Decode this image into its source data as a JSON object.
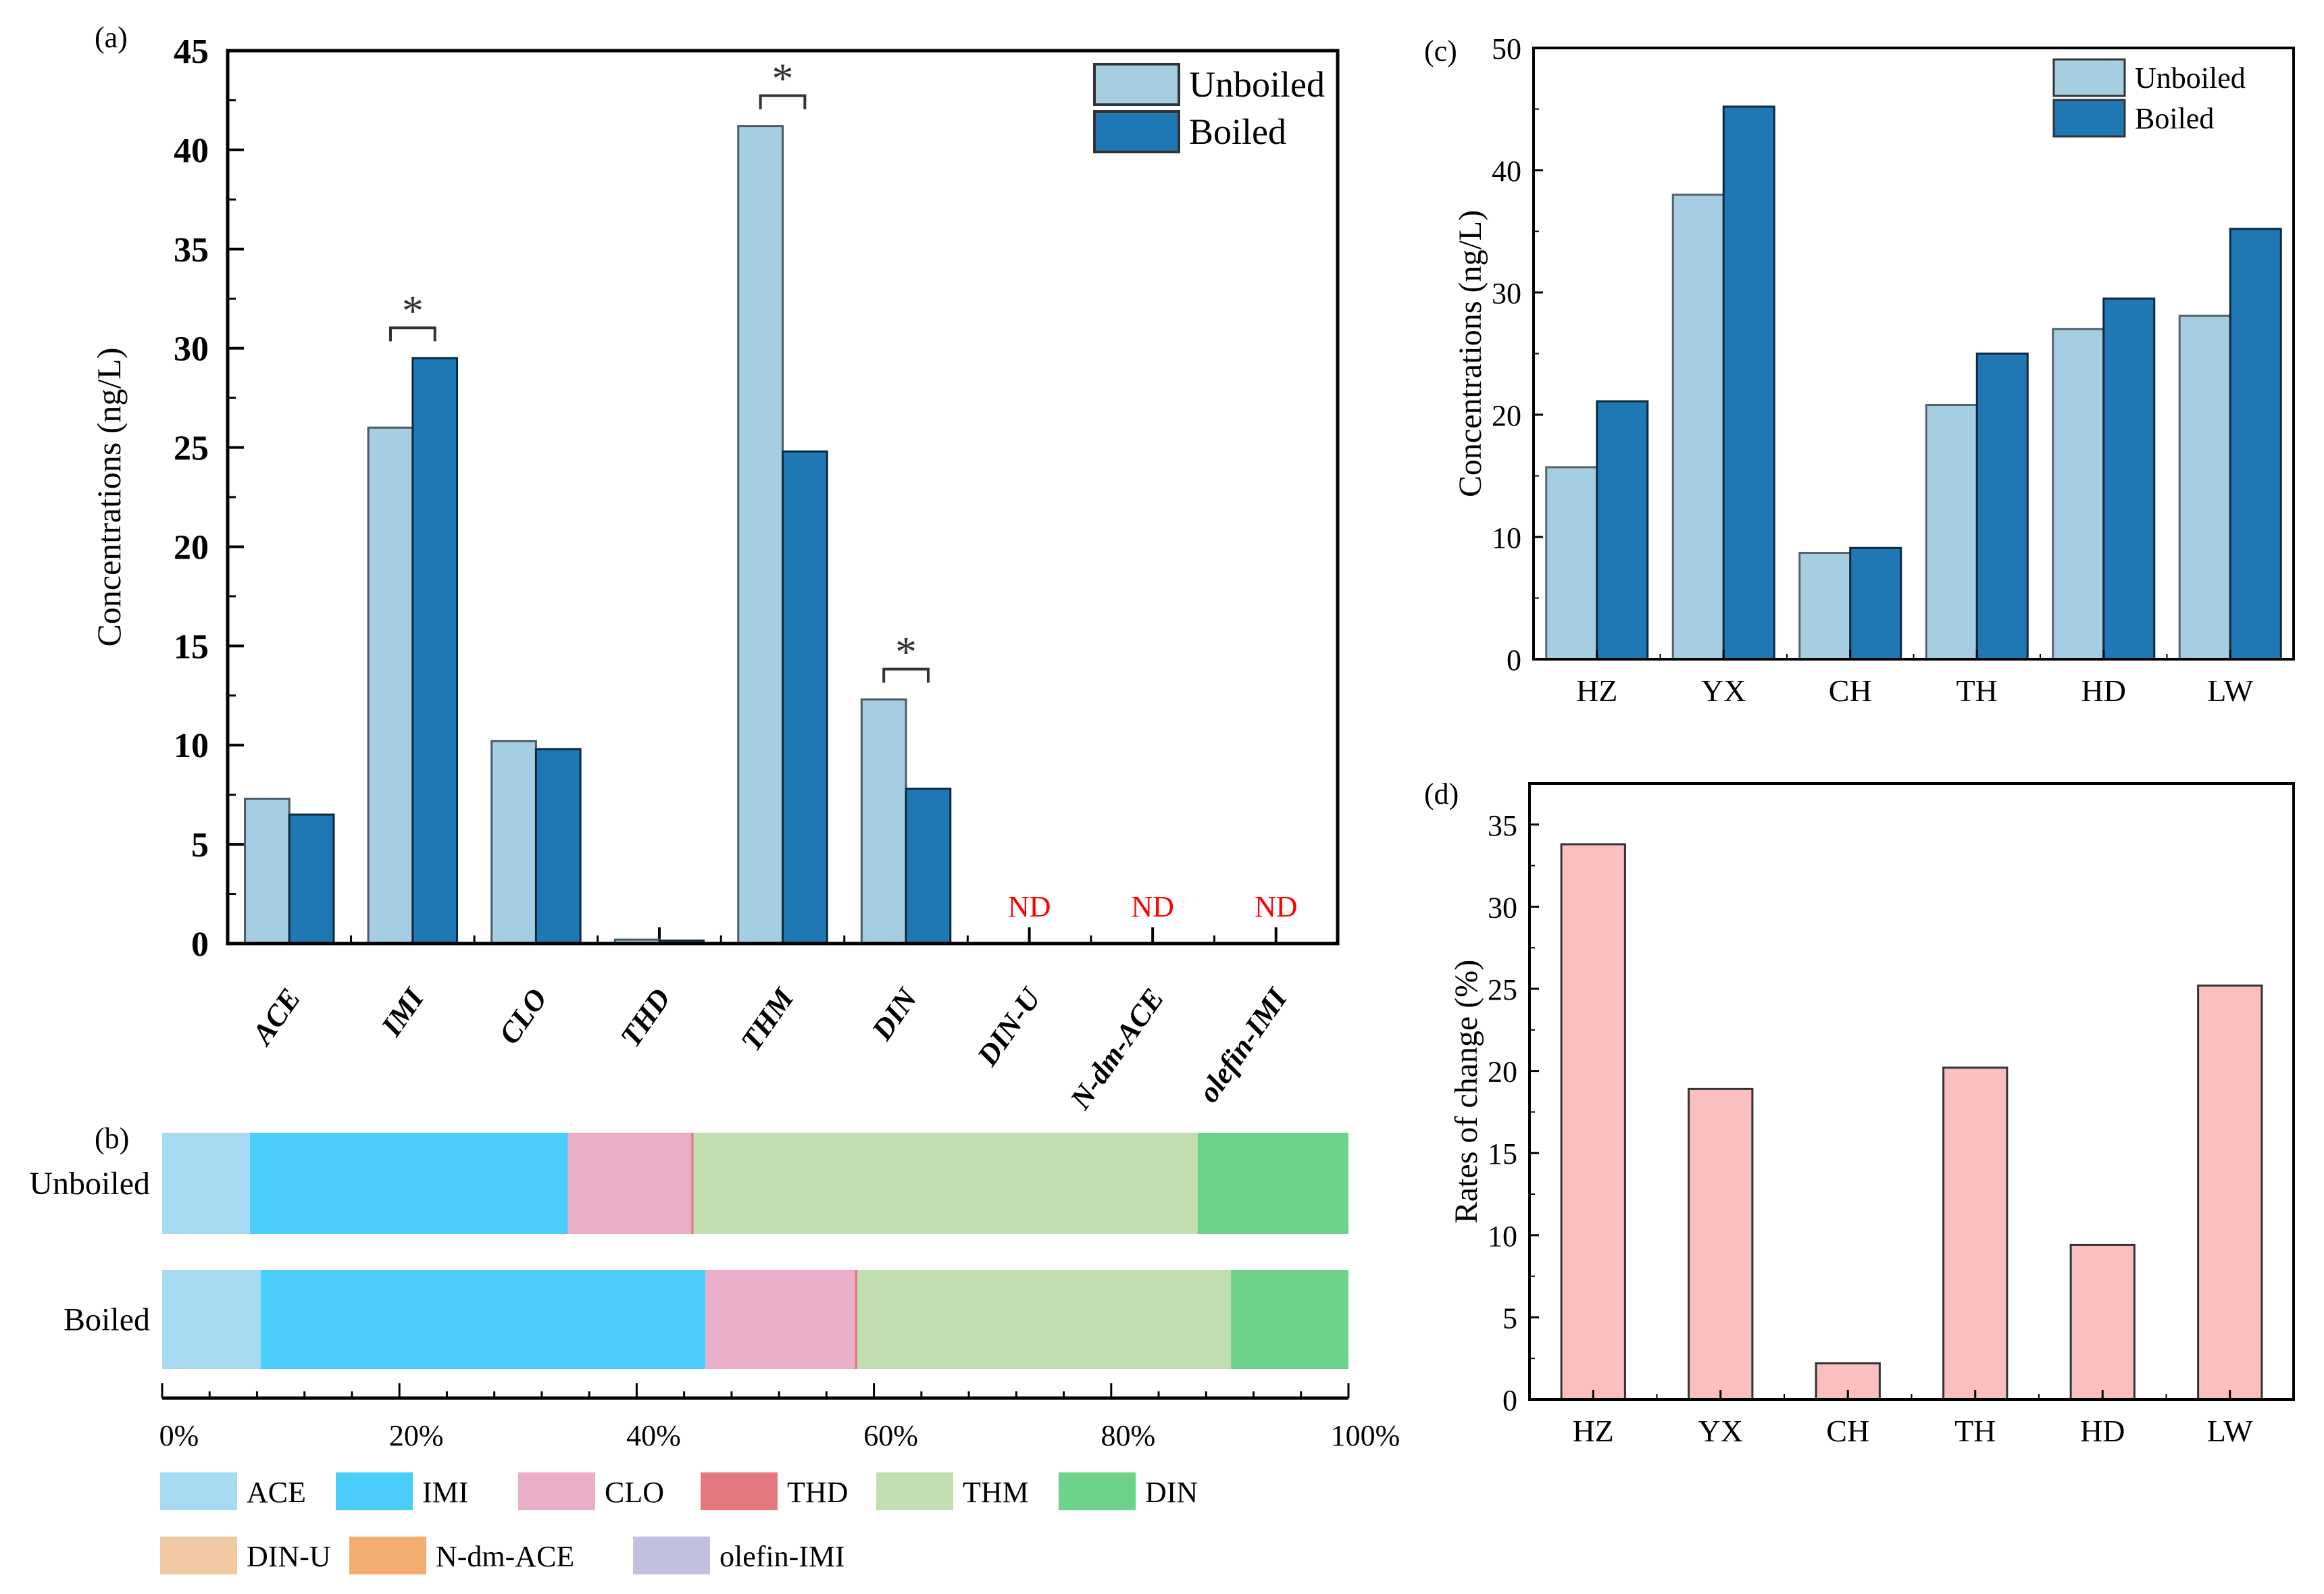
{
  "colors": {
    "unboiled": "#a6cee3",
    "boiled": "#1f78b4",
    "nd": "#ff0000",
    "rate": "#fbbfbf",
    "ACE": "#a5daf1",
    "IMI": "#4acdf8",
    "CLO": "#ebaec8",
    "THD": "#e47880",
    "THM": "#c2ddb0",
    "DIN": "#6dd38b",
    "DIN-U": "#f0c9a4",
    "N-dm-ACE": "#f3ae6f",
    "olefin-IMI": "#c1c1df"
  },
  "chart_data": [
    {
      "panel": "(a)",
      "type": "bar",
      "title": "",
      "xlabel": "",
      "ylabel": "Concentrations (ng/L)",
      "ylim": [
        0,
        45
      ],
      "yticks": [
        "0",
        "5",
        "10",
        "15",
        "20",
        "25",
        "30",
        "35",
        "40",
        "45"
      ],
      "categories": [
        "ACE",
        "IMI",
        "CLO",
        "THD",
        "THM",
        "DIN",
        "DIN-U",
        "N-dm-ACE",
        "olefin-IMI"
      ],
      "series": [
        {
          "name": "Unboiled",
          "values": [
            7.3,
            26.0,
            10.2,
            0.2,
            41.2,
            12.3,
            null,
            null,
            null
          ]
        },
        {
          "name": "Boiled",
          "values": [
            6.5,
            29.5,
            9.8,
            0.15,
            24.8,
            7.8,
            null,
            null,
            null
          ]
        }
      ],
      "annotations": [
        {
          "category": "IMI",
          "text": "*"
        },
        {
          "category": "THM",
          "text": "*"
        },
        {
          "category": "DIN",
          "text": "*"
        },
        {
          "category": "DIN-U",
          "text": "ND"
        },
        {
          "category": "N-dm-ACE",
          "text": "ND"
        },
        {
          "category": "olefin-IMI",
          "text": "ND"
        }
      ],
      "legend": {
        "placement": "top-right",
        "entries": [
          "Unboiled",
          "Boiled"
        ]
      },
      "grid": false
    },
    {
      "panel": "(b)",
      "type": "bar",
      "orientation": "horizontal-stacked-percent",
      "categories": [
        "Unboiled",
        "Boiled"
      ],
      "xlim": [
        0,
        100
      ],
      "xticks": [
        "0%",
        "20%",
        "40%",
        "60%",
        "80%",
        "100%"
      ],
      "series": [
        {
          "name": "ACE",
          "values": [
            7.4,
            8.3
          ]
        },
        {
          "name": "IMI",
          "values": [
            26.8,
            37.5
          ]
        },
        {
          "name": "CLO",
          "values": [
            10.4,
            12.6
          ]
        },
        {
          "name": "THD",
          "values": [
            0.2,
            0.2
          ]
        },
        {
          "name": "THM",
          "values": [
            42.5,
            31.5
          ]
        },
        {
          "name": "DIN",
          "values": [
            12.7,
            9.9
          ]
        },
        {
          "name": "DIN-U",
          "values": [
            0,
            0
          ]
        },
        {
          "name": "N-dm-ACE",
          "values": [
            0,
            0
          ]
        },
        {
          "name": "olefin-IMI",
          "values": [
            0,
            0
          ]
        }
      ],
      "legend": {
        "placement": "bottom",
        "entries": [
          "ACE",
          "IMI",
          "CLO",
          "THD",
          "THM",
          "DIN",
          "DIN-U",
          "N-dm-ACE",
          "olefin-IMI"
        ]
      },
      "grid": false
    },
    {
      "panel": "(c)",
      "type": "bar",
      "xlabel": "",
      "ylabel": "Concentrations (ng/L)",
      "ylim": [
        0,
        50
      ],
      "yticks": [
        "0",
        "10",
        "20",
        "30",
        "40",
        "50"
      ],
      "categories": [
        "HZ",
        "YX",
        "CH",
        "TH",
        "HD",
        "LW"
      ],
      "series": [
        {
          "name": "Unboiled",
          "values": [
            15.7,
            38.0,
            8.7,
            20.8,
            27.0,
            28.1
          ]
        },
        {
          "name": "Boiled",
          "values": [
            21.1,
            45.2,
            9.1,
            25.0,
            29.5,
            35.2
          ]
        }
      ],
      "legend": {
        "placement": "top-right",
        "entries": [
          "Unboiled",
          "Boiled"
        ]
      },
      "grid": false
    },
    {
      "panel": "(d)",
      "type": "bar",
      "xlabel": "",
      "ylabel": "Rates of change (%)",
      "ylim": [
        0,
        37.5
      ],
      "yticks": [
        "0",
        "5",
        "10",
        "15",
        "20",
        "25",
        "30",
        "35"
      ],
      "categories": [
        "HZ",
        "YX",
        "CH",
        "TH",
        "HD",
        "LW"
      ],
      "values": [
        33.8,
        18.9,
        2.2,
        20.2,
        9.4,
        25.2
      ],
      "grid": false
    }
  ]
}
